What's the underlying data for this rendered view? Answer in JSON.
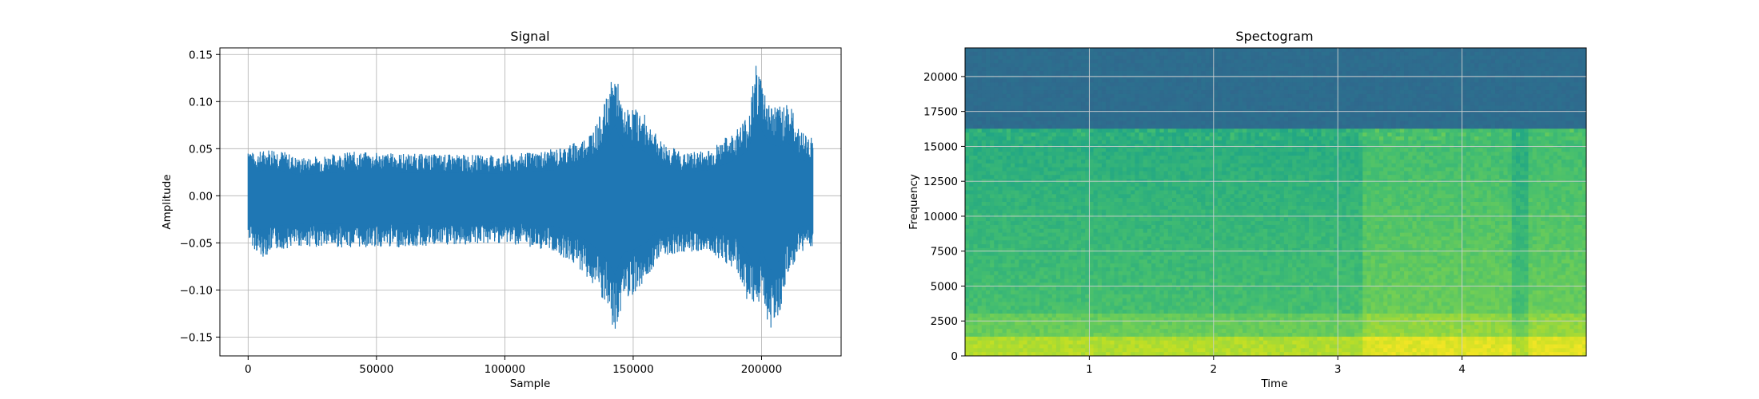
{
  "chart_data": [
    {
      "type": "line",
      "title": "Signal",
      "xlabel": "Sample",
      "ylabel": "Amplitude",
      "xlim": [
        -11000,
        231000
      ],
      "ylim": [
        -0.17,
        0.157
      ],
      "xticks": [
        0,
        50000,
        100000,
        150000,
        200000
      ],
      "xtick_labels": [
        "0",
        "50000",
        "100000",
        "150000",
        "200000"
      ],
      "yticks": [
        -0.15,
        -0.1,
        -0.05,
        0.0,
        0.05,
        0.1,
        0.15
      ],
      "ytick_labels": [
        "−0.15",
        "−0.10",
        "−0.05",
        "0.00",
        "0.05",
        "0.10",
        "0.15"
      ],
      "grid": true,
      "color": "#1f77b4",
      "series": [
        {
          "x": [
            0,
            2000,
            5000,
            10000,
            20000,
            40000,
            60000,
            80000,
            100000,
            120000,
            130000,
            136000,
            140000,
            143000,
            146000,
            150000,
            155000,
            160000,
            170000,
            180000,
            190000,
            195000,
            198000,
            200000,
            203000,
            207000,
            210000,
            215000,
            220000
          ],
          "y_max": [
            0.058,
            0.045,
            0.048,
            0.052,
            0.04,
            0.047,
            0.045,
            0.044,
            0.043,
            0.05,
            0.06,
            0.078,
            0.107,
            0.137,
            0.09,
            0.095,
            0.085,
            0.06,
            0.045,
            0.05,
            0.07,
            0.09,
            0.143,
            0.128,
            0.1,
            0.095,
            0.105,
            0.07,
            0.062
          ],
          "y_min": [
            -0.045,
            -0.055,
            -0.067,
            -0.058,
            -0.054,
            -0.055,
            -0.055,
            -0.053,
            -0.05,
            -0.06,
            -0.08,
            -0.103,
            -0.124,
            -0.153,
            -0.11,
            -0.105,
            -0.09,
            -0.065,
            -0.06,
            -0.06,
            -0.08,
            -0.115,
            -0.14,
            -0.1,
            -0.145,
            -0.125,
            -0.09,
            -0.06,
            -0.055
          ]
        }
      ]
    },
    {
      "type": "heatmap",
      "title": "Spectogram",
      "xlabel": "Time",
      "ylabel": "Frequency",
      "xlim": [
        0,
        5.0
      ],
      "ylim": [
        0,
        22050
      ],
      "xticks": [
        1,
        2,
        3,
        4
      ],
      "xtick_labels": [
        "1",
        "2",
        "3",
        "4"
      ],
      "yticks": [
        0,
        2500,
        5000,
        7500,
        10000,
        12500,
        15000,
        17500,
        20000
      ],
      "ytick_labels": [
        "0",
        "2500",
        "5000",
        "7500",
        "10000",
        "12500",
        "15000",
        "17500",
        "20000"
      ],
      "grid": true,
      "colormap": "viridis",
      "cutoff_frequency": 16200,
      "louder_segments": [
        {
          "t_start": 3.2,
          "t_end": 4.4
        },
        {
          "t_start": 4.55,
          "t_end": 5.0
        }
      ]
    }
  ]
}
